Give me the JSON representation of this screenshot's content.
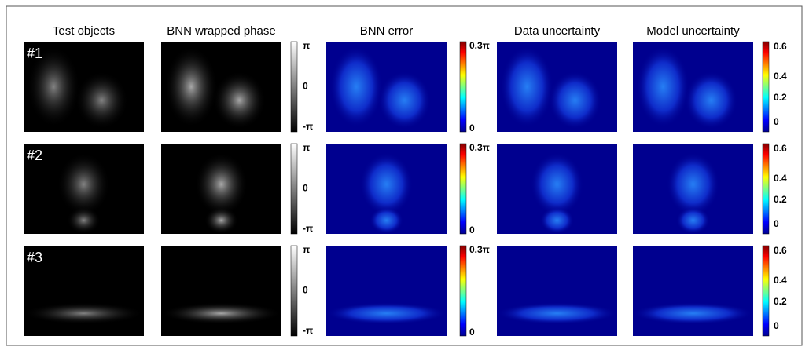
{
  "headers": [
    "Test objects",
    "BNN wrapped phase",
    "BNN error",
    "Data uncertainty",
    "Model uncertainty"
  ],
  "row_labels": [
    "#1",
    "#2",
    "#3"
  ],
  "colorbars": {
    "phase": [
      "π",
      "0",
      "-π"
    ],
    "error": [
      "0.3π",
      "0"
    ],
    "uncertainty": [
      "0.6",
      "0.4",
      "0.2",
      "0"
    ]
  }
}
